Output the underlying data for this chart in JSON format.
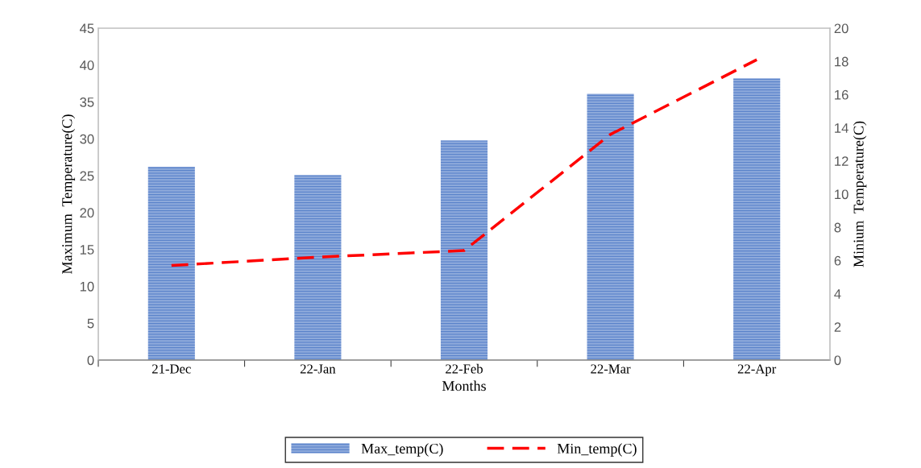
{
  "chart_data": {
    "type": "bar",
    "xlabel": "Months",
    "ylabel": "Maximum  Temperature(C)",
    "y2label": "Minium  Temperature(C)",
    "categories": [
      "21-Dec",
      "22-Jan",
      "22-Feb",
      "22-Mar",
      "22-Apr"
    ],
    "series": [
      {
        "name": "Max_temp(C)",
        "color": "#4472c4",
        "values": [
          26.2,
          25.1,
          29.8,
          36.1,
          38.2
        ]
      },
      {
        "name": "Min_temp(C)",
        "type": "line",
        "axis": "y2",
        "color": "#ff0000",
        "line_style": "dashed",
        "values": [
          5.7,
          6.2,
          6.6,
          13.6,
          18.1
        ]
      }
    ],
    "ylim": [
      0,
      45
    ],
    "yticks": [
      0,
      5,
      10,
      15,
      20,
      25,
      30,
      35,
      40,
      45
    ],
    "y2lim": [
      0,
      20
    ],
    "y2ticks": [
      0,
      2,
      4,
      6,
      8,
      10,
      12,
      14,
      16,
      18,
      20
    ],
    "legend": "bottom",
    "grid": false
  }
}
